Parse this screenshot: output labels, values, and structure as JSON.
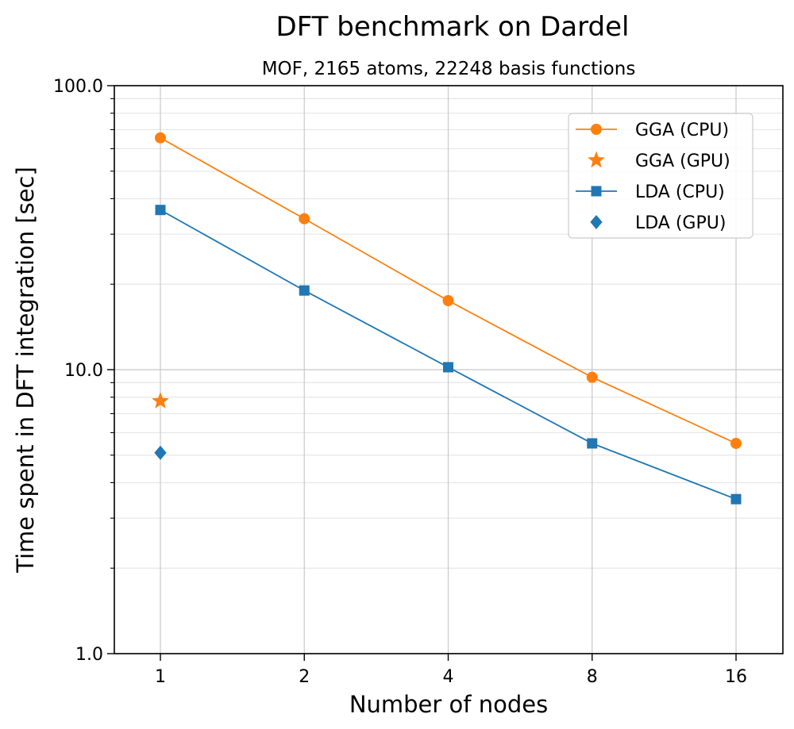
{
  "chart_data": {
    "type": "line",
    "title": "DFT benchmark on Dardel",
    "subtitle": "MOF, 2165 atoms, 22248 basis functions",
    "xlabel": "Number of nodes",
    "ylabel": "Time spent in DFT integration [sec]",
    "x_scale": "log2",
    "y_scale": "log10",
    "x_ticks": [
      1,
      2,
      4,
      8,
      16
    ],
    "x_tick_labels": [
      "1",
      "2",
      "4",
      "8",
      "16"
    ],
    "ylim": [
      1.0,
      100.0
    ],
    "y_ticks": [
      1.0,
      10.0,
      100.0
    ],
    "y_tick_labels": [
      "1.0",
      "10.0",
      "100.0"
    ],
    "grid": true,
    "legend_position": "top-right",
    "series": [
      {
        "name": "GGA (CPU)",
        "color": "#ff7f0e",
        "marker": "circle",
        "line": true,
        "x": [
          1,
          2,
          4,
          8,
          16
        ],
        "y": [
          65.5,
          34.0,
          17.5,
          9.4,
          5.5
        ]
      },
      {
        "name": "GGA (GPU)",
        "color": "#ff7f0e",
        "marker": "star",
        "line": false,
        "x": [
          1
        ],
        "y": [
          7.75
        ]
      },
      {
        "name": "LDA (CPU)",
        "color": "#1f77b4",
        "marker": "square",
        "line": true,
        "x": [
          1,
          2,
          4,
          8,
          16
        ],
        "y": [
          36.5,
          19.0,
          10.2,
          5.5,
          3.5
        ]
      },
      {
        "name": "LDA (GPU)",
        "color": "#1f77b4",
        "marker": "diamond",
        "line": false,
        "x": [
          1
        ],
        "y": [
          5.1
        ]
      }
    ]
  }
}
